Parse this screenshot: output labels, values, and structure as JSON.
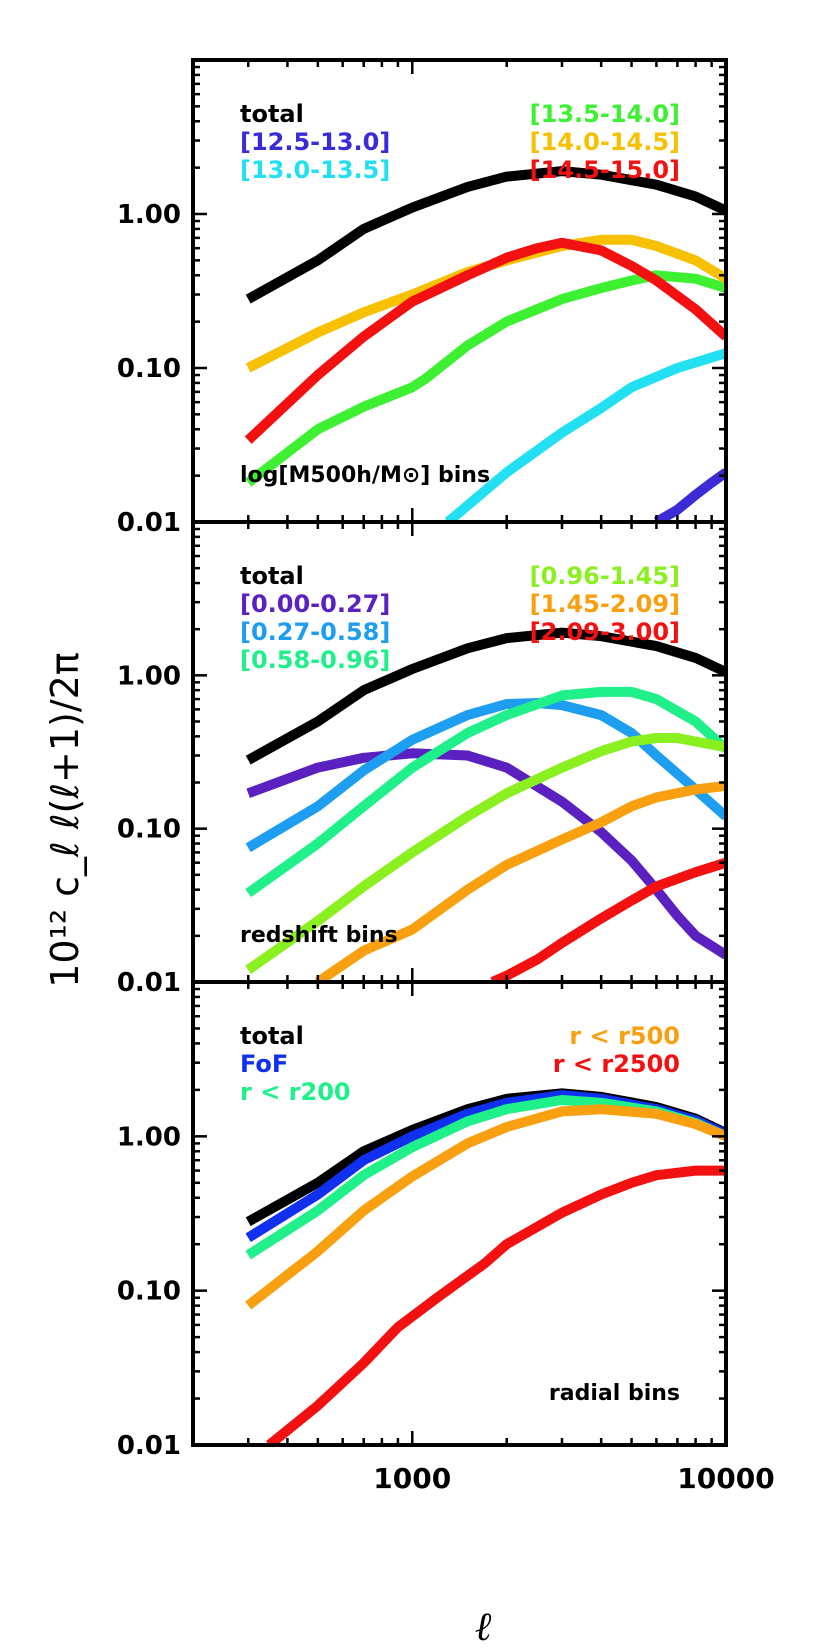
{
  "figure": {
    "ylabel": "10¹² c_ℓ ℓ(ℓ+1)/2π",
    "xlabel": "ℓ",
    "xticks": [
      1000,
      10000
    ],
    "xtick_labels": [
      "1000",
      "10000"
    ],
    "yticks": [
      0.01,
      0.1,
      1.0
    ],
    "ytick_labels": [
      "0.01",
      "0.10",
      "1.00"
    ]
  },
  "chart_data": [
    {
      "type": "line",
      "annotation": "log[M500h/M⊙] bins",
      "xscale": "log",
      "yscale": "log",
      "xlim": [
        200,
        10000
      ],
      "ylim": [
        0.01,
        10
      ],
      "legend": [
        {
          "label": "total",
          "color": "#000000",
          "column": "left"
        },
        {
          "label": "[12.5-13.0]",
          "color": "#3a2bd6",
          "column": "left"
        },
        {
          "label": "[13.0-13.5]",
          "color": "#22e0f2",
          "column": "left"
        },
        {
          "label": "[13.5-14.0]",
          "color": "#3ef032",
          "column": "right"
        },
        {
          "label": "[14.0-14.5]",
          "color": "#f7c000",
          "column": "right"
        },
        {
          "label": "[14.5-15.0]",
          "color": "#f21010",
          "column": "right"
        }
      ],
      "series": [
        {
          "name": "total",
          "color": "#000000",
          "x": [
            300,
            500,
            700,
            1000,
            1500,
            2000,
            3000,
            4000,
            6000,
            8000,
            10000
          ],
          "y": [
            0.28,
            0.5,
            0.8,
            1.1,
            1.5,
            1.75,
            1.9,
            1.8,
            1.55,
            1.3,
            1.05
          ]
        },
        {
          "name": "[12.5-13.0]",
          "color": "#3a2bd6",
          "x": [
            6000,
            7000,
            8000,
            9000,
            10000
          ],
          "y": [
            0.01,
            0.012,
            0.015,
            0.018,
            0.021
          ]
        },
        {
          "name": "[13.0-13.5]",
          "color": "#22e0f2",
          "x": [
            1300,
            2000,
            3000,
            4000,
            5000,
            7000,
            10000
          ],
          "y": [
            0.01,
            0.021,
            0.038,
            0.055,
            0.075,
            0.1,
            0.125
          ]
        },
        {
          "name": "[13.5-14.0]",
          "color": "#3ef032",
          "x": [
            300,
            500,
            700,
            1000,
            1100,
            1500,
            2000,
            3000,
            4000,
            5000,
            6000,
            8000,
            10000
          ],
          "y": [
            0.018,
            0.04,
            0.056,
            0.075,
            0.085,
            0.14,
            0.2,
            0.28,
            0.33,
            0.37,
            0.4,
            0.38,
            0.33
          ]
        },
        {
          "name": "[14.0-14.5]",
          "color": "#f7c000",
          "x": [
            300,
            500,
            700,
            1000,
            1500,
            2000,
            3000,
            4000,
            5000,
            6000,
            8000,
            10000
          ],
          "y": [
            0.1,
            0.17,
            0.23,
            0.3,
            0.42,
            0.5,
            0.62,
            0.68,
            0.68,
            0.62,
            0.5,
            0.38
          ]
        },
        {
          "name": "[14.5-15.0]",
          "color": "#f21010",
          "x": [
            300,
            500,
            700,
            1000,
            1500,
            2000,
            2500,
            3000,
            4000,
            5000,
            6000,
            8000,
            10000
          ],
          "y": [
            0.034,
            0.09,
            0.16,
            0.27,
            0.4,
            0.52,
            0.6,
            0.65,
            0.58,
            0.46,
            0.37,
            0.24,
            0.16
          ]
        }
      ]
    },
    {
      "type": "line",
      "annotation": "redshift bins",
      "xscale": "log",
      "yscale": "log",
      "xlim": [
        200,
        10000
      ],
      "ylim": [
        0.01,
        10
      ],
      "legend": [
        {
          "label": "total",
          "color": "#000000",
          "column": "left"
        },
        {
          "label": "[0.00-0.27]",
          "color": "#5a20c0",
          "column": "left"
        },
        {
          "label": "[0.27-0.58]",
          "color": "#1e9ef0",
          "column": "left"
        },
        {
          "label": "[0.58-0.96]",
          "color": "#20f08a",
          "column": "left"
        },
        {
          "label": "[0.96-1.45]",
          "color": "#8af020",
          "column": "right"
        },
        {
          "label": "[1.45-2.09]",
          "color": "#f8a010",
          "column": "right"
        },
        {
          "label": "[2.09-3.00]",
          "color": "#f21010",
          "column": "right"
        }
      ],
      "series": [
        {
          "name": "total",
          "color": "#000000",
          "x": [
            300,
            500,
            700,
            1000,
            1500,
            2000,
            3000,
            4000,
            6000,
            8000,
            10000
          ],
          "y": [
            0.28,
            0.5,
            0.8,
            1.1,
            1.5,
            1.75,
            1.9,
            1.8,
            1.55,
            1.3,
            1.05
          ]
        },
        {
          "name": "[0.00-0.27]",
          "color": "#5a20c0",
          "x": [
            300,
            500,
            700,
            1000,
            1500,
            2000,
            3000,
            4000,
            5000,
            6000,
            7000,
            8000,
            10000
          ],
          "y": [
            0.17,
            0.25,
            0.29,
            0.31,
            0.3,
            0.25,
            0.15,
            0.095,
            0.062,
            0.04,
            0.027,
            0.02,
            0.015
          ]
        },
        {
          "name": "[0.27-0.58]",
          "color": "#1e9ef0",
          "x": [
            300,
            500,
            700,
            1000,
            1500,
            2000,
            2500,
            3000,
            4000,
            5000,
            6000,
            8000,
            10000
          ],
          "y": [
            0.075,
            0.14,
            0.24,
            0.38,
            0.55,
            0.65,
            0.66,
            0.64,
            0.55,
            0.42,
            0.3,
            0.18,
            0.12
          ]
        },
        {
          "name": "[0.58-0.96]",
          "color": "#20f08a",
          "x": [
            300,
            500,
            700,
            1000,
            1500,
            2000,
            3000,
            4000,
            5000,
            6000,
            8000,
            10000
          ],
          "y": [
            0.038,
            0.08,
            0.14,
            0.25,
            0.42,
            0.55,
            0.74,
            0.78,
            0.78,
            0.7,
            0.5,
            0.33
          ]
        },
        {
          "name": "[0.96-1.45]",
          "color": "#8af020",
          "x": [
            300,
            500,
            700,
            1000,
            1500,
            2000,
            3000,
            4000,
            5000,
            6000,
            7000,
            8000,
            10000
          ],
          "y": [
            0.012,
            0.025,
            0.042,
            0.07,
            0.12,
            0.17,
            0.25,
            0.32,
            0.37,
            0.39,
            0.39,
            0.37,
            0.34
          ]
        },
        {
          "name": "[1.45-2.09]",
          "color": "#f8a010",
          "x": [
            500,
            700,
            1000,
            1500,
            2000,
            3000,
            4000,
            5000,
            6000,
            8000,
            10000
          ],
          "y": [
            0.01,
            0.016,
            0.022,
            0.04,
            0.058,
            0.085,
            0.11,
            0.14,
            0.16,
            0.18,
            0.19
          ]
        },
        {
          "name": "[2.09-3.00]",
          "color": "#f21010",
          "x": [
            1800,
            2000,
            2500,
            3000,
            4000,
            5000,
            6000,
            8000,
            10000
          ],
          "y": [
            0.01,
            0.011,
            0.014,
            0.018,
            0.026,
            0.034,
            0.042,
            0.052,
            0.06
          ]
        }
      ]
    },
    {
      "type": "line",
      "annotation": "radial bins",
      "xscale": "log",
      "yscale": "log",
      "xlim": [
        200,
        10000
      ],
      "ylim": [
        0.01,
        10
      ],
      "legend": [
        {
          "label": "total",
          "color": "#000000",
          "column": "left"
        },
        {
          "label": "FoF",
          "color": "#1030f0",
          "column": "left"
        },
        {
          "label": "r < r200",
          "color": "#20f08a",
          "column": "left"
        },
        {
          "label": "r < r500",
          "color": "#f8a010",
          "column": "right"
        },
        {
          "label": "r < r2500",
          "color": "#f21010",
          "column": "right"
        }
      ],
      "series": [
        {
          "name": "total",
          "color": "#000000",
          "x": [
            300,
            500,
            700,
            1000,
            1500,
            2000,
            3000,
            4000,
            6000,
            8000,
            10000
          ],
          "y": [
            0.28,
            0.5,
            0.8,
            1.1,
            1.5,
            1.75,
            1.9,
            1.8,
            1.55,
            1.3,
            1.05
          ]
        },
        {
          "name": "FoF",
          "color": "#1030f0",
          "x": [
            300,
            500,
            700,
            1000,
            1500,
            2000,
            3000,
            4000,
            6000,
            8000,
            10000
          ],
          "y": [
            0.22,
            0.42,
            0.7,
            1.0,
            1.4,
            1.65,
            1.85,
            1.75,
            1.5,
            1.27,
            1.03
          ]
        },
        {
          "name": "r < r200",
          "color": "#20f08a",
          "x": [
            300,
            500,
            700,
            1000,
            1500,
            2000,
            3000,
            4000,
            6000,
            8000,
            10000
          ],
          "y": [
            0.17,
            0.33,
            0.56,
            0.85,
            1.25,
            1.5,
            1.72,
            1.65,
            1.45,
            1.22,
            1.0
          ]
        },
        {
          "name": "r < r500",
          "color": "#f8a010",
          "x": [
            300,
            500,
            700,
            1000,
            1500,
            2000,
            3000,
            4000,
            6000,
            8000,
            10000
          ],
          "y": [
            0.08,
            0.18,
            0.33,
            0.55,
            0.9,
            1.15,
            1.45,
            1.5,
            1.4,
            1.2,
            1.0
          ]
        },
        {
          "name": "r < r2500",
          "color": "#f21010",
          "x": [
            350,
            500,
            700,
            900,
            1200,
            1700,
            2000,
            3000,
            4000,
            5000,
            6000,
            8000,
            10000
          ],
          "y": [
            0.01,
            0.018,
            0.034,
            0.058,
            0.09,
            0.15,
            0.2,
            0.32,
            0.42,
            0.5,
            0.56,
            0.6,
            0.6
          ]
        }
      ]
    }
  ]
}
